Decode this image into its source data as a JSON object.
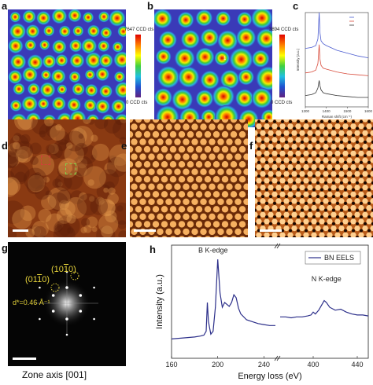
{
  "panel_labels": {
    "a": "a",
    "b": "b",
    "c": "c",
    "d": "d",
    "e": "e",
    "f": "f",
    "g": "g",
    "h": "h"
  },
  "colorbar_a": {
    "max": "7647 CCD cts",
    "min": "0 CCD cts"
  },
  "colorbar_b": {
    "max": "3894 CCD cts",
    "min": "0 CCD cts"
  },
  "panel_b_marker": "1",
  "panel_g": {
    "index_1": "(10Ā1̄ 0)",
    "index_1_text": "(10",
    "index_1_bar": "1",
    "index_1_end": "0)",
    "index_2_text": "(01",
    "index_2_bar": "1",
    "index_2_end": "0)",
    "dspacing": "d*=0.46 Å⁻¹",
    "caption": "Zone axis [001]"
  },
  "colors": {
    "accent_yellow": "#e6d33a",
    "eels_line": "#2c2f8a",
    "raman_blue": "#4a5bd0",
    "raman_red": "#d84a3a",
    "raman_black": "#333333"
  },
  "chart_data": [
    {
      "type": "line",
      "panel": "c",
      "title": "",
      "xlabel": "Raman shift (cm⁻¹)",
      "ylabel": "Intensity (a.u.)",
      "xlim": [
        1300,
        1600
      ],
      "x_ticks": [
        "1300",
        "1400",
        "1500",
        "1600"
      ],
      "series": [
        {
          "color": "#4a5bd0",
          "x": [
            1300,
            1330,
            1350,
            1360,
            1366,
            1370,
            1375,
            1385,
            1400,
            1450,
            1500,
            1550,
            1600
          ],
          "y": [
            0.62,
            0.63,
            0.65,
            0.72,
            1.0,
            0.78,
            0.7,
            0.67,
            0.65,
            0.6,
            0.57,
            0.54,
            0.52
          ]
        },
        {
          "color": "#d84a3a",
          "x": [
            1300,
            1330,
            1350,
            1360,
            1366,
            1370,
            1375,
            1385,
            1400,
            1450,
            1500,
            1550,
            1600
          ],
          "y": [
            0.36,
            0.37,
            0.39,
            0.46,
            0.66,
            0.5,
            0.44,
            0.41,
            0.4,
            0.37,
            0.35,
            0.34,
            0.33
          ]
        },
        {
          "color": "#333333",
          "x": [
            1300,
            1330,
            1350,
            1360,
            1366,
            1370,
            1375,
            1385,
            1400,
            1450,
            1500,
            1550,
            1600
          ],
          "y": [
            0.12,
            0.13,
            0.15,
            0.2,
            0.28,
            0.22,
            0.18,
            0.15,
            0.14,
            0.12,
            0.11,
            0.1,
            0.1
          ]
        }
      ]
    },
    {
      "type": "line",
      "panel": "h",
      "title": "",
      "xlabel": "Energy loss (eV)",
      "ylabel": "Intensity (a.u.)",
      "legend": "top-right",
      "series_name": "BN EELS",
      "annotations": [
        "B K-edge",
        "N K-edge"
      ],
      "x_ticks": [
        "160",
        "200",
        "240",
        "400",
        "440"
      ],
      "segment1": {
        "xlim": [
          160,
          250
        ],
        "x": [
          160,
          170,
          180,
          185,
          188,
          190,
          191,
          192,
          194,
          196,
          198,
          199,
          200,
          202,
          204,
          206,
          208,
          210,
          212,
          214,
          216,
          218,
          220,
          225,
          230,
          235,
          240,
          245,
          250
        ],
        "y": [
          0.12,
          0.13,
          0.14,
          0.15,
          0.16,
          0.2,
          0.5,
          0.3,
          0.17,
          0.2,
          0.45,
          0.7,
          0.95,
          0.6,
          0.45,
          0.5,
          0.48,
          0.46,
          0.5,
          0.58,
          0.55,
          0.44,
          0.38,
          0.32,
          0.3,
          0.28,
          0.27,
          0.26,
          0.26
        ]
      },
      "segment2": {
        "xlim": [
          370,
          450
        ],
        "x": [
          370,
          375,
          380,
          385,
          390,
          395,
          398,
          400,
          402,
          405,
          408,
          410,
          412,
          415,
          420,
          425,
          430,
          435,
          440,
          445,
          450
        ],
        "y": [
          0.35,
          0.35,
          0.34,
          0.35,
          0.35,
          0.36,
          0.37,
          0.4,
          0.38,
          0.42,
          0.48,
          0.52,
          0.5,
          0.45,
          0.42,
          0.43,
          0.4,
          0.38,
          0.37,
          0.37,
          0.36
        ]
      }
    }
  ]
}
